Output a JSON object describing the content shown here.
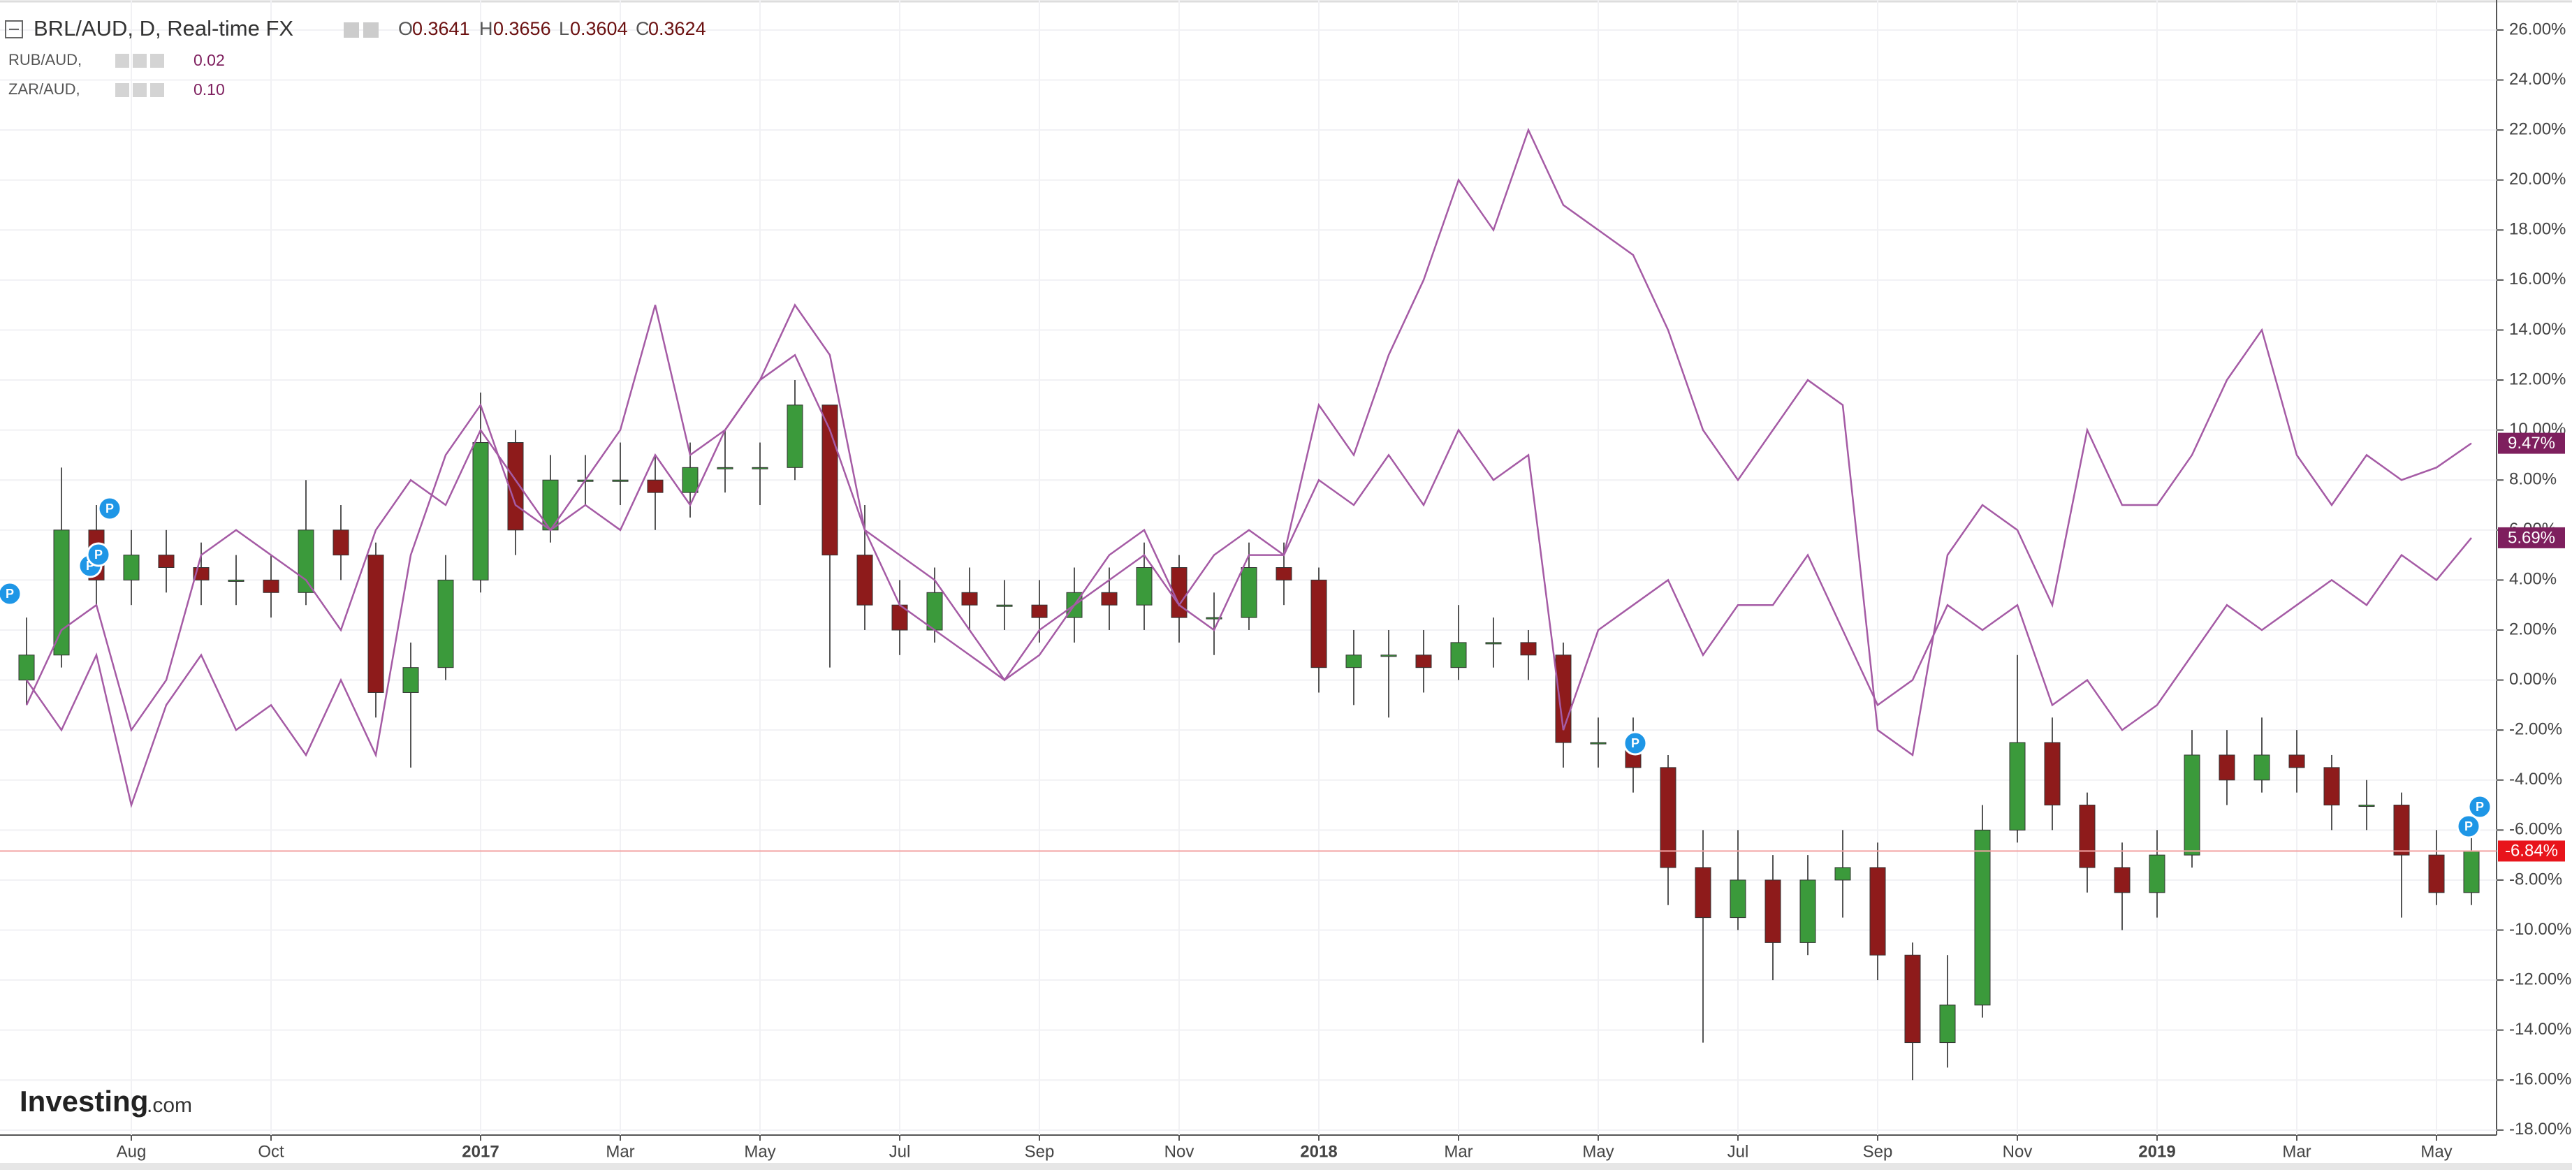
{
  "chart_data": {
    "type": "candlestick",
    "ylim": [
      -18.2,
      27.2
    ],
    "yticks": [
      {
        "value": 26,
        "label": "26.00%"
      },
      {
        "value": 24,
        "label": "24.00%"
      },
      {
        "value": 22,
        "label": "22.00%"
      },
      {
        "value": 20,
        "label": "20.00%"
      },
      {
        "value": 18,
        "label": "18.00%"
      },
      {
        "value": 16,
        "label": "16.00%"
      },
      {
        "value": 14,
        "label": "14.00%"
      },
      {
        "value": 12,
        "label": "12.00%"
      },
      {
        "value": 10,
        "label": "10.00%"
      },
      {
        "value": 8,
        "label": "8.00%"
      },
      {
        "value": 6,
        "label": "6.00%"
      },
      {
        "value": 4,
        "label": "4.00%"
      },
      {
        "value": 2,
        "label": "2.00%"
      },
      {
        "value": 0,
        "label": "0.00%"
      },
      {
        "value": -2,
        "label": "-2.00%"
      },
      {
        "value": -4,
        "label": "-4.00%"
      },
      {
        "value": -6,
        "label": "-6.00%"
      },
      {
        "value": -8,
        "label": "-8.00%"
      },
      {
        "value": -10,
        "label": "-10.00%"
      },
      {
        "value": -12,
        "label": "-12.00%"
      },
      {
        "value": -14,
        "label": "-14.00%"
      },
      {
        "value": -16,
        "label": "-16.00%"
      },
      {
        "value": -18,
        "label": "-18.00%"
      }
    ],
    "grid": true,
    "categories": [
      null,
      null,
      null,
      "Aug",
      null,
      null,
      null,
      "Oct",
      null,
      null,
      null,
      null,
      null,
      "2017",
      null,
      null,
      null,
      "Mar",
      null,
      null,
      null,
      "May",
      null,
      null,
      null,
      "Jul",
      null,
      null,
      null,
      "Sep",
      null,
      null,
      null,
      "Nov",
      null,
      null,
      null,
      "2018",
      null,
      null,
      null,
      "Mar",
      null,
      null,
      null,
      "May",
      null,
      null,
      null,
      "Jul",
      null,
      null,
      null,
      "Sep",
      null,
      null,
      null,
      "Nov",
      null,
      null,
      null,
      "2019",
      null,
      null,
      null,
      "Mar",
      null,
      null,
      null,
      "May",
      null
    ],
    "ohlc": [
      {
        "key": "O",
        "value": 0.3641
      },
      {
        "key": "H",
        "value": 0.3656
      },
      {
        "key": "L",
        "value": 0.3604
      },
      {
        "key": "C",
        "value": 0.3624
      }
    ],
    "series": [
      {
        "name": "BRL/AUD, D, Real-time FX",
        "type": "candlestick",
        "up_color": "#3b9a3b",
        "down_color": "#8e1b1b",
        "label_color": "#e8141b",
        "open": [
          0,
          1,
          6,
          4,
          5,
          4.5,
          4,
          4,
          3.5,
          6,
          5,
          -0.5,
          0.5,
          4,
          9.5,
          6,
          8,
          8,
          8,
          7.5,
          8.5,
          8.5,
          8.5,
          11,
          5,
          3,
          2,
          3.5,
          3,
          3,
          2.5,
          3.5,
          3,
          4.5,
          2.5,
          2.5,
          4.5,
          4,
          0.5,
          1,
          1,
          0.5,
          1.5,
          1.5,
          1,
          -2.5,
          -2.5,
          -3.5,
          -7.5,
          -9.5,
          -8,
          -10.5,
          -8,
          -7.5,
          -11,
          -14.5,
          -13,
          -6,
          -2.5,
          -5,
          -7.5,
          -8.5,
          -7,
          -3,
          -4,
          -3,
          -3.5,
          -5,
          -5,
          -7,
          -8.5
        ],
        "high": [
          2.5,
          8.5,
          7,
          6,
          6,
          5.5,
          5,
          5,
          8,
          7,
          5.5,
          1.5,
          5,
          11.5,
          10,
          9,
          9,
          9.5,
          9,
          9.5,
          10,
          9.5,
          12,
          11,
          7,
          4,
          4.5,
          4.5,
          4,
          4,
          4.5,
          4.5,
          5.5,
          5,
          3.5,
          5.5,
          5.5,
          4.5,
          2,
          2,
          2,
          3,
          2.5,
          2,
          1.5,
          -1.5,
          -1.5,
          -3,
          -6,
          -6,
          -7,
          -7,
          -6,
          -6.5,
          -10.5,
          -11,
          -5,
          1,
          -1.5,
          -4.5,
          -6.5,
          -6,
          -2,
          -2,
          -1.5,
          -2,
          -3,
          -4,
          -4.5,
          -6,
          -6
        ],
        "low": [
          -1,
          0.5,
          3,
          3,
          3.5,
          3,
          3,
          2.5,
          3,
          4,
          -1.5,
          -3.5,
          0,
          3.5,
          5,
          5.5,
          7,
          7,
          6,
          6.5,
          7.5,
          7,
          8,
          0.5,
          2,
          1,
          1.5,
          2,
          2,
          1.5,
          1.5,
          2,
          2,
          1.5,
          1,
          2,
          3,
          -0.5,
          -1,
          -1.5,
          -0.5,
          0,
          0.5,
          0,
          -3.5,
          -3.5,
          -4.5,
          -9,
          -14.5,
          -10,
          -12,
          -11,
          -9.5,
          -12,
          -16,
          -15.5,
          -13.5,
          -6.5,
          -6,
          -8.5,
          -10,
          -9.5,
          -7.5,
          -5,
          -4.5,
          -4.5,
          -6,
          -6,
          -9.5,
          -9,
          -9
        ],
        "close": [
          1,
          6,
          4,
          5,
          4.5,
          4,
          4,
          3.5,
          6,
          5,
          -0.5,
          0.5,
          4,
          9.5,
          6,
          8,
          8,
          8,
          7.5,
          8.5,
          8.5,
          8.5,
          11,
          5,
          3,
          2,
          3.5,
          3,
          3,
          2.5,
          3.5,
          3,
          4.5,
          2.5,
          2.5,
          4.5,
          4,
          0.5,
          1,
          1,
          0.5,
          1.5,
          1.5,
          1,
          -2.5,
          -2.5,
          -3.5,
          -7.5,
          -9.5,
          -8,
          -10.5,
          -8,
          -7.5,
          -11,
          -14.5,
          -13,
          -6,
          -2.5,
          -5,
          -7.5,
          -8.5,
          -7,
          -3,
          -4,
          -3,
          -3.5,
          -5,
          -5,
          -7,
          -8.5,
          -6.84
        ],
        "value_labels": [
          null,
          null,
          null,
          null,
          null,
          null,
          null,
          null,
          null,
          null,
          null,
          null,
          null,
          null,
          null,
          null,
          null,
          null,
          null,
          null,
          null,
          null,
          null,
          null,
          null,
          null,
          null,
          null,
          null,
          null,
          null,
          null,
          null,
          null,
          null,
          null,
          null,
          null,
          null,
          null,
          null,
          null,
          null,
          null,
          null,
          null,
          null,
          null,
          null,
          null,
          null,
          null,
          null,
          null,
          null,
          null,
          null,
          null,
          null,
          null,
          null,
          null,
          null,
          null,
          null,
          null,
          null,
          null,
          null,
          null,
          "-6.84%"
        ]
      },
      {
        "name": "RUB/AUD,",
        "type": "line",
        "color": "#a55ba5",
        "label_color": "#7e1f5e",
        "legend_value": 0.02,
        "values": [
          0,
          -2,
          1,
          -5,
          -1,
          1,
          -2,
          -1,
          -3,
          0,
          -3,
          5,
          9,
          11,
          7,
          6,
          7,
          6,
          9,
          7,
          10,
          12,
          15,
          13,
          6,
          5,
          4,
          2,
          0,
          1,
          3,
          4,
          5,
          3,
          2,
          5,
          5,
          8,
          7,
          9,
          7,
          10,
          8,
          9,
          -2,
          2,
          3,
          4,
          1,
          3,
          3,
          5,
          2,
          -1,
          0,
          3,
          2,
          3,
          -1,
          0,
          -2,
          -1,
          1,
          3,
          2,
          3,
          4,
          3,
          5,
          4,
          5.69
        ],
        "value_labels": [
          null,
          null,
          null,
          null,
          null,
          null,
          null,
          null,
          null,
          null,
          null,
          null,
          null,
          null,
          null,
          null,
          null,
          null,
          null,
          null,
          null,
          null,
          null,
          null,
          null,
          null,
          null,
          null,
          null,
          null,
          null,
          null,
          null,
          null,
          null,
          null,
          null,
          null,
          null,
          null,
          null,
          null,
          null,
          null,
          null,
          null,
          null,
          null,
          null,
          null,
          null,
          null,
          null,
          null,
          null,
          null,
          null,
          null,
          null,
          null,
          null,
          null,
          null,
          null,
          null,
          null,
          null,
          null,
          null,
          null,
          "5.69%"
        ]
      },
      {
        "name": "ZAR/AUD,",
        "type": "line",
        "color": "#a55ba5",
        "label_color": "#7e1f5e",
        "legend_value": {
          "value": 0.1,
          "label": "0.10"
        },
        "values": [
          -1,
          2,
          3,
          -2,
          0,
          5,
          6,
          5,
          4,
          2,
          6,
          8,
          7,
          10,
          8,
          6,
          8,
          10,
          15,
          9,
          10,
          12,
          13,
          10,
          6,
          3,
          2,
          1,
          0,
          2,
          3,
          5,
          6,
          3,
          5,
          6,
          5,
          11,
          9,
          13,
          16,
          20,
          18,
          22,
          19,
          18,
          17,
          14,
          10,
          8,
          10,
          12,
          11,
          -2,
          -3,
          5,
          7,
          6,
          3,
          10,
          7,
          7,
          9,
          12,
          14,
          9,
          7,
          9,
          8,
          8.5,
          9.47
        ],
        "value_labels": [
          null,
          null,
          null,
          null,
          null,
          null,
          null,
          null,
          null,
          null,
          null,
          null,
          null,
          null,
          null,
          null,
          null,
          null,
          null,
          null,
          null,
          null,
          null,
          null,
          null,
          null,
          null,
          null,
          null,
          null,
          null,
          null,
          null,
          null,
          null,
          null,
          null,
          null,
          null,
          null,
          null,
          null,
          null,
          null,
          null,
          null,
          null,
          null,
          null,
          null,
          null,
          null,
          null,
          null,
          null,
          null,
          null,
          null,
          null,
          null,
          null,
          null,
          null,
          null,
          null,
          null,
          null,
          null,
          null,
          null,
          "9.47%"
        ]
      }
    ],
    "pin_label": "P",
    "watermark": [
      "Investing",
      ".com"
    ]
  }
}
